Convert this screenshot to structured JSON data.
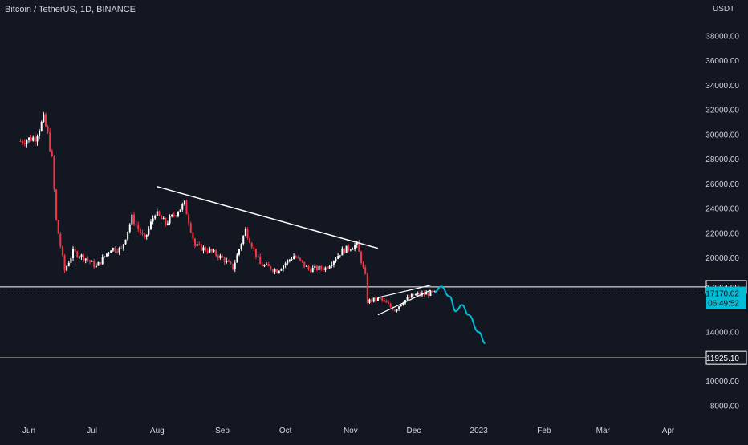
{
  "header": {
    "symbol_title": "Bitcoin / TetherUS, 1D, BINANCE",
    "currency": "USDT"
  },
  "colors": {
    "background": "#131722",
    "up_candle": "#ffffff",
    "down_candle": "#f23645",
    "trendline": "#ffffff",
    "projection": "#00bcd4",
    "last_price_label": "#00bcd4"
  },
  "chart_data": {
    "type": "candlestick",
    "symbol": "Bitcoin / TetherUS",
    "interval": "1D",
    "exchange": "BINANCE",
    "y_unit": "USDT",
    "ylim": [
      7000,
      40000
    ],
    "grid": false,
    "y_ticks": [
      "38000.00",
      "36000.00",
      "34000.00",
      "32000.00",
      "30000.00",
      "28000.00",
      "26000.00",
      "24000.00",
      "22000.00",
      "20000.00",
      "14000.00",
      "10000.00",
      "8000.00"
    ],
    "x_ticks": [
      "Jun",
      "Jul",
      "Aug",
      "Sep",
      "Oct",
      "Nov",
      "Dec",
      "2023",
      "Feb",
      "Mar",
      "Apr"
    ],
    "price_lines": [
      {
        "value": 17664.98,
        "label": "17664.98"
      },
      {
        "value": 11925.1,
        "label": "11925.10"
      }
    ],
    "last_price": {
      "value": 17170.02,
      "label": "17170.02",
      "countdown": "06:49:52"
    },
    "price_path": [
      [
        "2022-05-28",
        29500
      ],
      [
        "2022-06-04",
        29800
      ],
      [
        "2022-06-08",
        31300
      ],
      [
        "2022-06-10",
        30000
      ],
      [
        "2022-06-12",
        28000
      ],
      [
        "2022-06-14",
        23000
      ],
      [
        "2022-06-18",
        19000
      ],
      [
        "2022-06-22",
        20500
      ],
      [
        "2022-06-28",
        20000
      ],
      [
        "2022-07-03",
        19300
      ],
      [
        "2022-07-10",
        20800
      ],
      [
        "2022-07-15",
        20700
      ],
      [
        "2022-07-20",
        23300
      ],
      [
        "2022-07-26",
        21500
      ],
      [
        "2022-07-31",
        23700
      ],
      [
        "2022-08-05",
        22800
      ],
      [
        "2022-08-14",
        24400
      ],
      [
        "2022-08-19",
        21000
      ],
      [
        "2022-08-26",
        20600
      ],
      [
        "2022-09-01",
        20000
      ],
      [
        "2022-09-06",
        19200
      ],
      [
        "2022-09-12",
        22300
      ],
      [
        "2022-09-19",
        19500
      ],
      [
        "2022-09-27",
        19000
      ],
      [
        "2022-10-05",
        20200
      ],
      [
        "2022-10-12",
        19100
      ],
      [
        "2022-10-20",
        19200
      ],
      [
        "2022-10-28",
        20600
      ],
      [
        "2022-11-04",
        21100
      ],
      [
        "2022-11-08",
        18500
      ],
      [
        "2022-11-09",
        16500
      ],
      [
        "2022-11-15",
        16700
      ],
      [
        "2022-11-22",
        15800
      ],
      [
        "2022-11-26",
        16500
      ],
      [
        "2022-12-01",
        17000
      ],
      [
        "2022-12-11",
        17170
      ]
    ],
    "drawings": {
      "descending_trendline": {
        "from": [
          "2022-08-01",
          25800
        ],
        "to": [
          "2022-11-14",
          20800
        ]
      },
      "wedge_upper": {
        "from": [
          "2022-11-14",
          16800
        ],
        "to": [
          "2022-12-09",
          17800
        ]
      },
      "wedge_lower": {
        "from": [
          "2022-11-14",
          15400
        ],
        "to": [
          "2022-12-09",
          17400
        ]
      },
      "projection": [
        [
          "2022-12-11",
          17250
        ],
        [
          "2022-12-14",
          17700
        ],
        [
          "2022-12-18",
          16900
        ],
        [
          "2022-12-21",
          15700
        ],
        [
          "2022-12-24",
          16200
        ],
        [
          "2022-12-27",
          15400
        ],
        [
          "2023-01-01",
          14000
        ],
        [
          "2023-01-04",
          13100
        ]
      ]
    }
  }
}
